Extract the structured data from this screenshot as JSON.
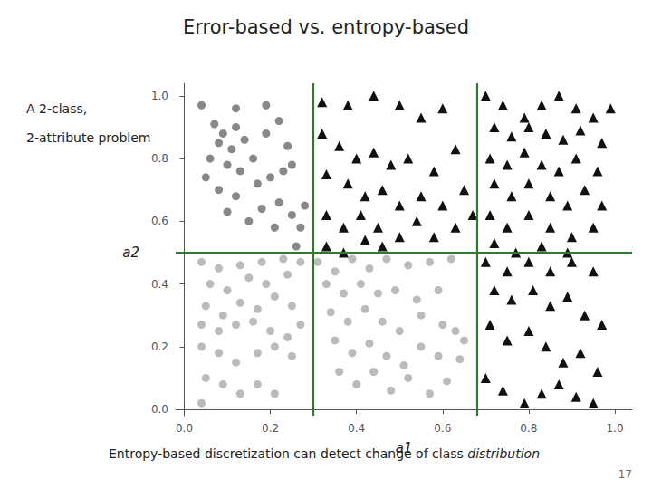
{
  "chart_data": {
    "type": "scatter",
    "title": "Error-based vs. entropy-based",
    "subtitle": [
      "A 2-class,",
      "2-attribute problem"
    ],
    "xlabel": "a1",
    "ylabel": "a2",
    "footer": [
      "Entropy-based discretization can detect change of class ",
      "distribution"
    ],
    "page_number": "17",
    "xlim": [
      -0.02,
      1.04
    ],
    "ylim": [
      -0.02,
      1.04
    ],
    "xticks": [
      {
        "value": 0,
        "label": "0.0"
      },
      0.2,
      0.4,
      0.6,
      0.8,
      {
        "value": 1,
        "label": "1.0"
      }
    ],
    "yticks": [
      {
        "value": 0,
        "label": "0.0"
      },
      0.2,
      0.4,
      0.6,
      0.8,
      {
        "value": 1,
        "label": "1.0"
      }
    ],
    "grid": false,
    "reference_lines": [
      {
        "axis": "x",
        "value": 0.3,
        "color": "#2d7a2d"
      },
      {
        "axis": "x",
        "value": 0.68,
        "color": "#2d7a2d"
      },
      {
        "axis": "y",
        "value": 0.5,
        "color": "#2d7a2d"
      }
    ],
    "series": [
      {
        "color": "#888888",
        "marker": "circle",
        "x": [
          0.04,
          0.12,
          0.19,
          0.07,
          0.09,
          0.12,
          0.08,
          0.11,
          0.14,
          0.19,
          0.22,
          0.06,
          0.1,
          0.16,
          0.24,
          0.13,
          0.17,
          0.2,
          0.25,
          0.23,
          0.05,
          0.08,
          0.12,
          0.18,
          0.22,
          0.15,
          0.25,
          0.21,
          0.1,
          0.27,
          0.26,
          0.28
        ],
        "values": [
          0.97,
          0.96,
          0.97,
          0.91,
          0.88,
          0.9,
          0.85,
          0.83,
          0.86,
          0.88,
          0.92,
          0.8,
          0.78,
          0.8,
          0.84,
          0.76,
          0.72,
          0.74,
          0.78,
          0.76,
          0.74,
          0.7,
          0.68,
          0.64,
          0.66,
          0.6,
          0.62,
          0.58,
          0.63,
          0.58,
          0.52,
          0.65
        ]
      },
      {
        "color": "#bbbbbb",
        "marker": "circle",
        "x": [
          0.04,
          0.08,
          0.13,
          0.18,
          0.23,
          0.27,
          0.06,
          0.1,
          0.15,
          0.19,
          0.24,
          0.05,
          0.09,
          0.13,
          0.17,
          0.21,
          0.25,
          0.04,
          0.08,
          0.12,
          0.16,
          0.2,
          0.24,
          0.27,
          0.04,
          0.08,
          0.12,
          0.17,
          0.21,
          0.25,
          0.05,
          0.09,
          0.13,
          0.17,
          0.21,
          0.04,
          0.31,
          0.35,
          0.39,
          0.43,
          0.47,
          0.52,
          0.57,
          0.62,
          0.33,
          0.37,
          0.41,
          0.45,
          0.49,
          0.54,
          0.59,
          0.34,
          0.38,
          0.42,
          0.46,
          0.5,
          0.55,
          0.6,
          0.35,
          0.39,
          0.43,
          0.47,
          0.51,
          0.55,
          0.59,
          0.36,
          0.4,
          0.44,
          0.48,
          0.52,
          0.57,
          0.61,
          0.63,
          0.64,
          0.65
        ],
        "values": [
          0.47,
          0.45,
          0.46,
          0.47,
          0.48,
          0.47,
          0.4,
          0.38,
          0.42,
          0.4,
          0.43,
          0.33,
          0.3,
          0.34,
          0.32,
          0.36,
          0.33,
          0.27,
          0.25,
          0.27,
          0.28,
          0.25,
          0.23,
          0.27,
          0.2,
          0.18,
          0.15,
          0.18,
          0.2,
          0.17,
          0.1,
          0.08,
          0.05,
          0.08,
          0.05,
          0.02,
          0.47,
          0.44,
          0.48,
          0.45,
          0.48,
          0.46,
          0.47,
          0.48,
          0.4,
          0.37,
          0.4,
          0.37,
          0.38,
          0.35,
          0.38,
          0.31,
          0.28,
          0.32,
          0.28,
          0.25,
          0.3,
          0.27,
          0.22,
          0.18,
          0.21,
          0.17,
          0.14,
          0.2,
          0.17,
          0.12,
          0.08,
          0.12,
          0.06,
          0.1,
          0.05,
          0.09,
          0.25,
          0.16,
          0.22
        ]
      },
      {
        "color": "#111111",
        "marker": "triangle",
        "x": [
          0.32,
          0.38,
          0.44,
          0.5,
          0.55,
          0.6,
          0.32,
          0.36,
          0.4,
          0.44,
          0.48,
          0.52,
          0.58,
          0.63,
          0.33,
          0.38,
          0.42,
          0.46,
          0.5,
          0.55,
          0.6,
          0.65,
          0.33,
          0.37,
          0.41,
          0.45,
          0.5,
          0.54,
          0.58,
          0.63,
          0.67,
          0.33,
          0.37,
          0.42,
          0.46,
          0.7,
          0.74,
          0.79,
          0.83,
          0.87,
          0.91,
          0.95,
          0.99,
          0.72,
          0.76,
          0.8,
          0.84,
          0.88,
          0.92,
          0.97,
          0.71,
          0.75,
          0.79,
          0.83,
          0.87,
          0.91,
          0.96,
          0.72,
          0.76,
          0.8,
          0.85,
          0.89,
          0.93,
          0.97,
          0.71,
          0.75,
          0.8,
          0.85,
          0.9,
          0.95,
          0.72,
          0.77,
          0.83,
          0.89
        ],
        "values": [
          0.98,
          0.97,
          1.0,
          0.97,
          0.93,
          0.96,
          0.88,
          0.84,
          0.8,
          0.82,
          0.78,
          0.8,
          0.76,
          0.83,
          0.75,
          0.72,
          0.68,
          0.7,
          0.65,
          0.68,
          0.65,
          0.7,
          0.62,
          0.58,
          0.62,
          0.58,
          0.55,
          0.6,
          0.55,
          0.58,
          0.62,
          0.52,
          0.5,
          0.54,
          0.52,
          1.0,
          0.97,
          0.93,
          0.97,
          1.0,
          0.96,
          0.93,
          0.96,
          0.9,
          0.87,
          0.9,
          0.88,
          0.86,
          0.89,
          0.85,
          0.8,
          0.78,
          0.82,
          0.78,
          0.76,
          0.8,
          0.76,
          0.72,
          0.68,
          0.72,
          0.68,
          0.65,
          0.7,
          0.65,
          0.62,
          0.58,
          0.62,
          0.58,
          0.55,
          0.58,
          0.53,
          0.5,
          0.52,
          0.5
        ]
      },
      {
        "color": "#111111",
        "marker": "triangle",
        "x": [
          0.7,
          0.75,
          0.8,
          0.85,
          0.9,
          0.95,
          0.72,
          0.76,
          0.81,
          0.85,
          0.89,
          0.93,
          0.97,
          0.71,
          0.75,
          0.8,
          0.84,
          0.88,
          0.92,
          0.96,
          0.7,
          0.74,
          0.79,
          0.83,
          0.87,
          0.91,
          0.95
        ],
        "values": [
          0.47,
          0.44,
          0.47,
          0.44,
          0.47,
          0.44,
          0.38,
          0.35,
          0.38,
          0.33,
          0.36,
          0.3,
          0.27,
          0.27,
          0.22,
          0.25,
          0.2,
          0.15,
          0.18,
          0.12,
          0.1,
          0.06,
          0.02,
          0.05,
          0.08,
          0.04,
          0.02
        ]
      }
    ]
  }
}
